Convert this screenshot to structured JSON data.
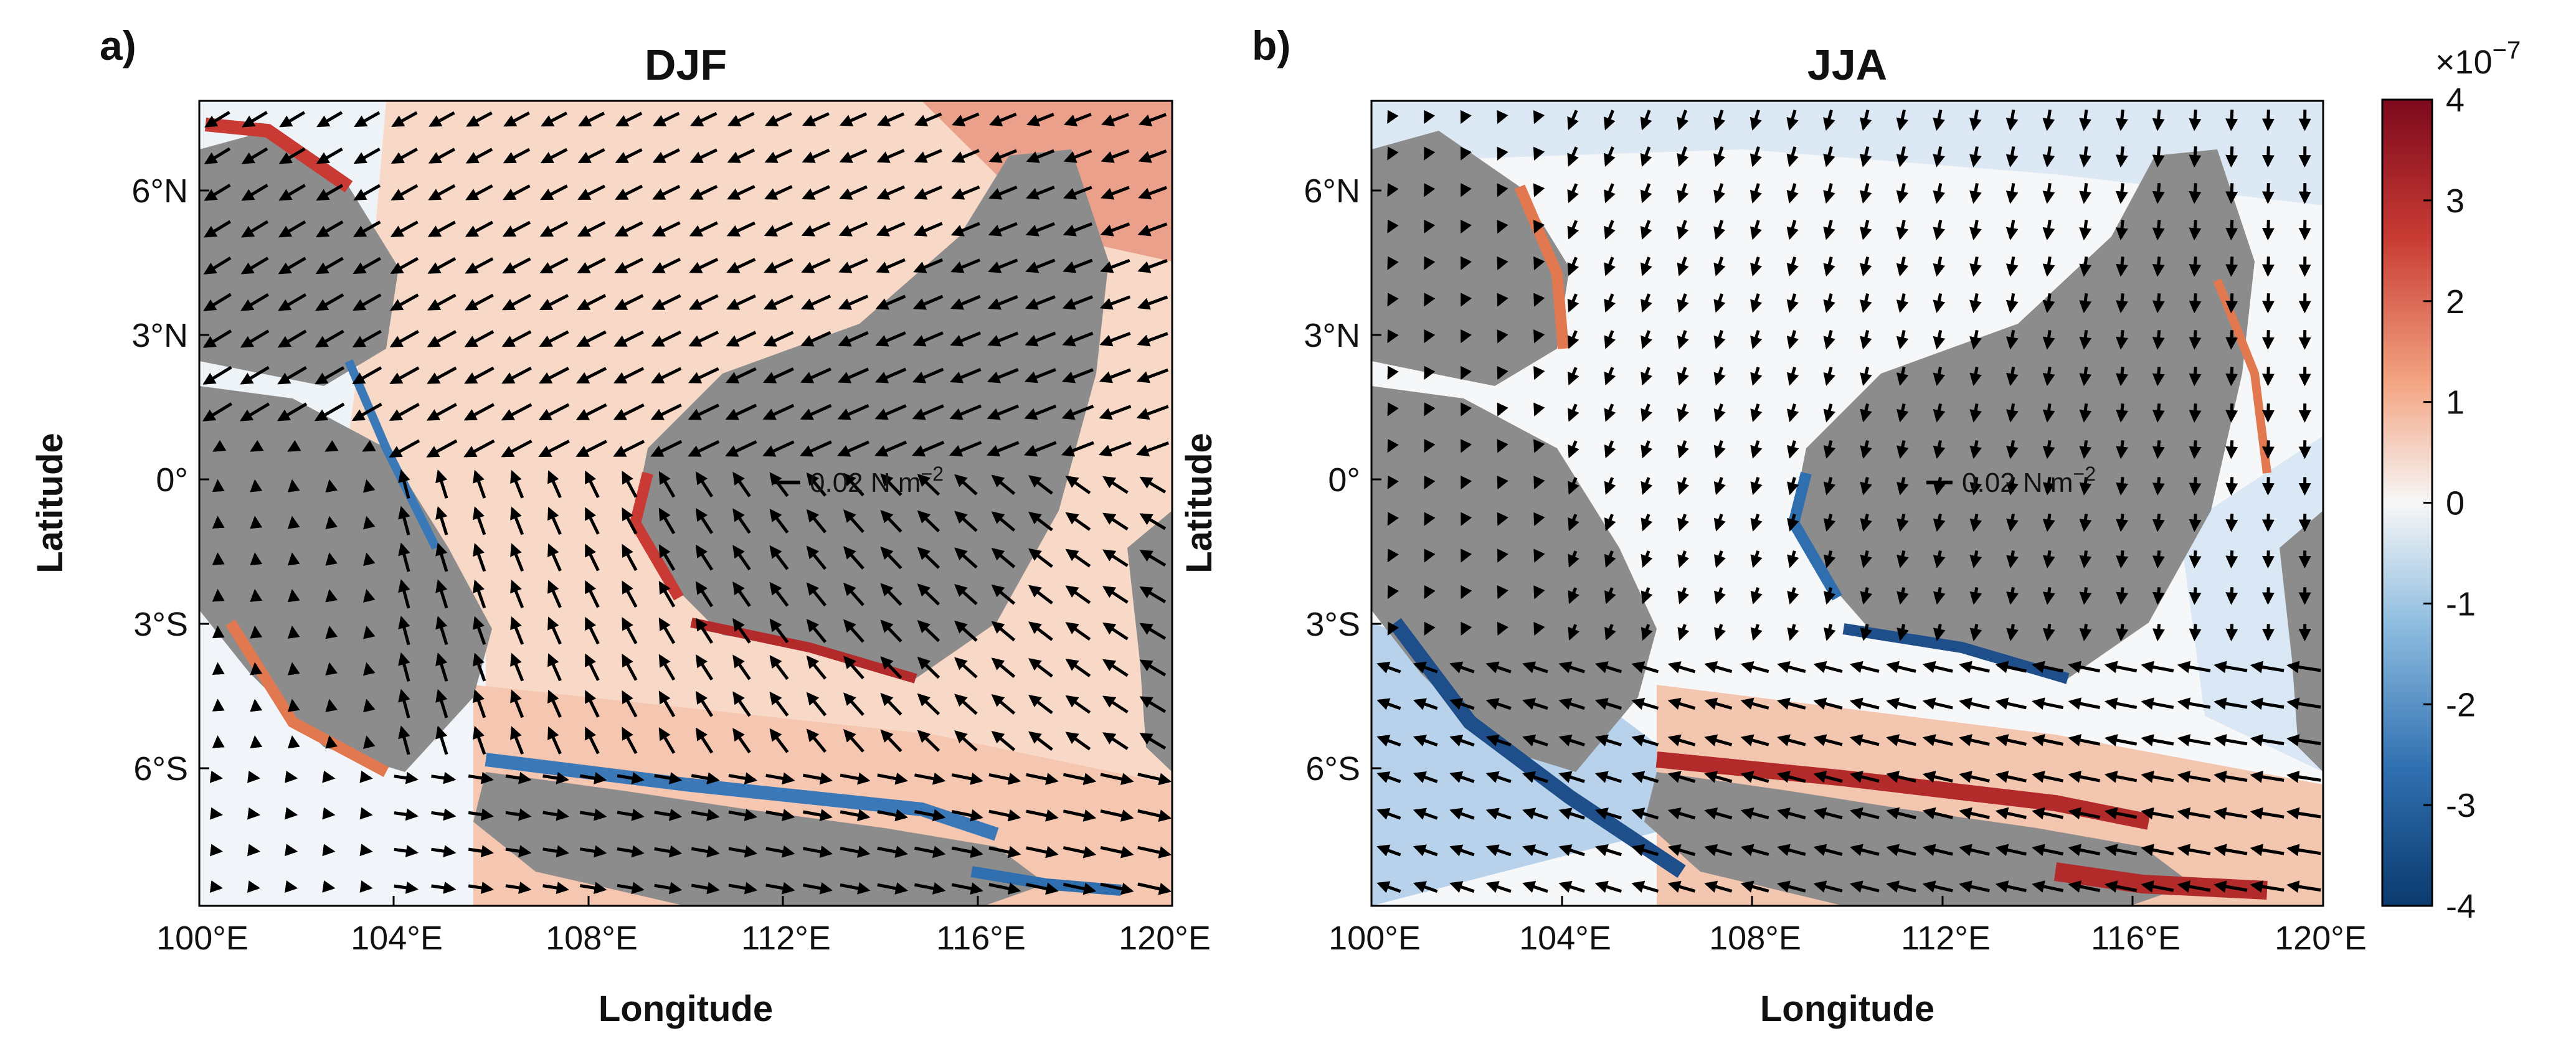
{
  "figure": {
    "panels": [
      {
        "letter": "a)",
        "title": "DJF",
        "xlabel": "Longitude",
        "ylabel": "Latitude",
        "scale_label": "0.02 N m",
        "scale_exponent": "−2",
        "pattern": "northeast-monsoon"
      },
      {
        "letter": "b)",
        "title": "JJA",
        "xlabel": "Longitude",
        "ylabel": "Latitude",
        "scale_label": "0.02 N m",
        "scale_exponent": "−2",
        "pattern": "southeast-monsoon"
      }
    ],
    "x_ticks": [
      "100°E",
      "104°E",
      "108°E",
      "112°E",
      "116°E",
      "120°E"
    ],
    "y_ticks": [
      "6°N",
      "3°N",
      "0°",
      "3°S",
      "6°S"
    ],
    "colorbar": {
      "multiplier_base": "×10",
      "multiplier_exp": "−7",
      "ticks": [
        "4",
        "3",
        "2",
        "1",
        "0",
        "-1",
        "-2",
        "-3",
        "-4"
      ],
      "range": [
        -4,
        4
      ],
      "colors": [
        "#0b3a6e",
        "#2f6fb0",
        "#8fbde0",
        "#f7f7f7",
        "#f3a482",
        "#c83a33",
        "#7d0a1d"
      ]
    },
    "land_color": "#8c8c8c"
  }
}
